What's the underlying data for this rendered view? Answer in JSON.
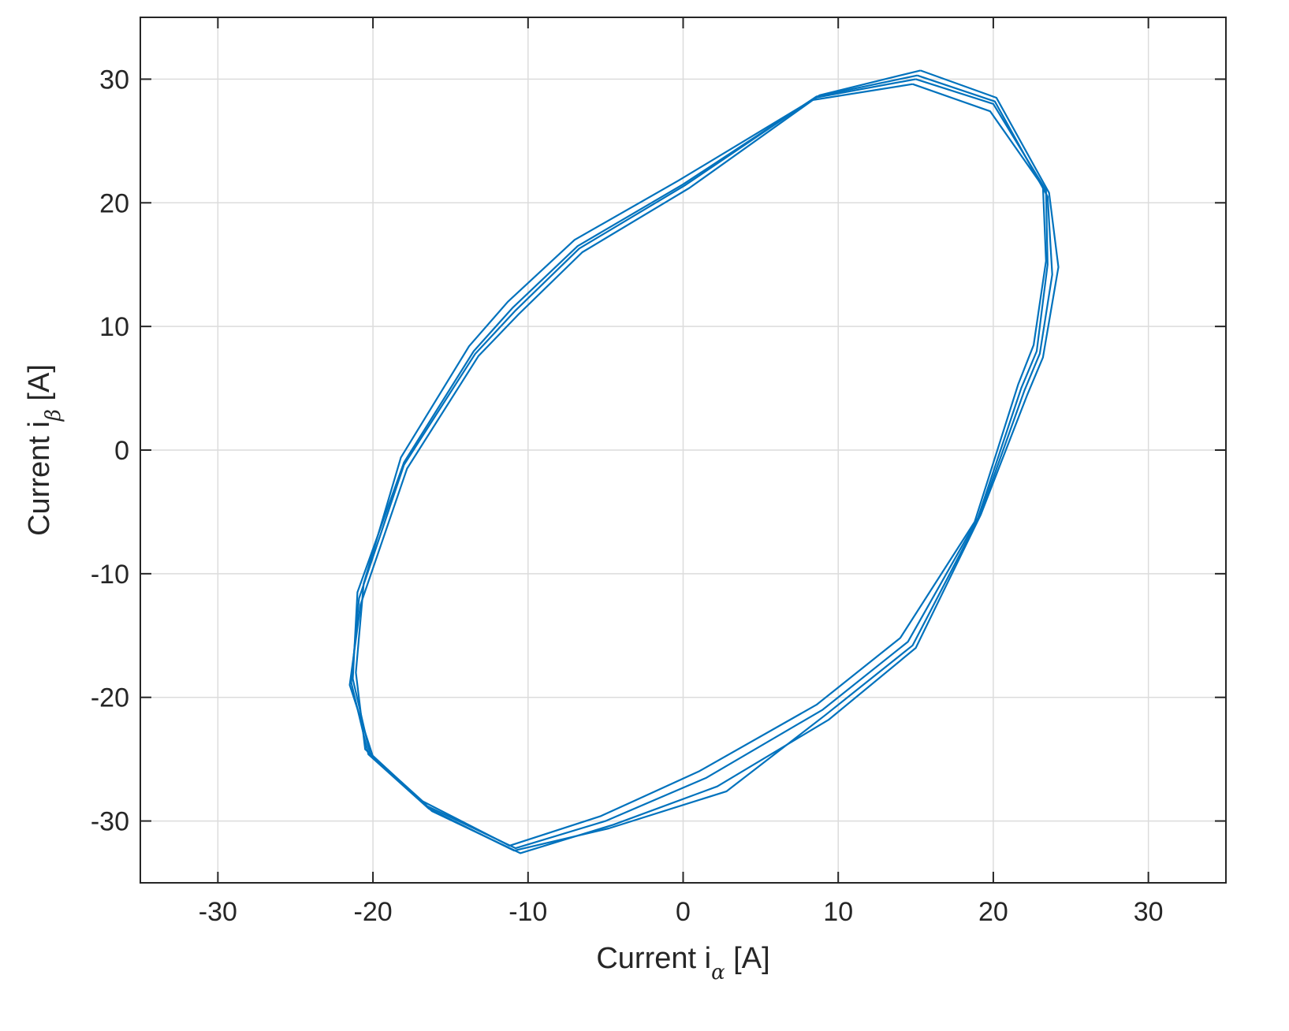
{
  "chart_data": {
    "type": "line",
    "title": "",
    "xlabel": {
      "prefix": "Current i",
      "sub": "α",
      "suffix": " [A]"
    },
    "ylabel": {
      "prefix": "Current i",
      "sub": "β",
      "suffix": " [A]"
    },
    "xlim": [
      -35,
      35
    ],
    "ylim": [
      -35,
      35
    ],
    "xticks": [
      -30,
      -20,
      -10,
      0,
      10,
      20,
      30
    ],
    "yticks": [
      -30,
      -20,
      -10,
      0,
      10,
      20,
      30
    ],
    "grid": true,
    "color": "#0072BD",
    "series": [
      {
        "x": [
          15.0,
          20.0,
          23.4,
          23.5,
          22.8,
          21.8,
          19.0,
          14.5,
          9.0,
          1.5,
          -5.0,
          -10.8,
          -16.5,
          -20.2,
          -21.3,
          -21.0,
          -18.0,
          -13.5,
          -11.0,
          -6.8,
          0.0,
          8.5,
          15.0
        ],
        "y": [
          30.0,
          28.0,
          21.0,
          15.0,
          8.0,
          5.0,
          -5.5,
          -15.5,
          -21.0,
          -26.5,
          -30.0,
          -32.2,
          -28.8,
          -24.5,
          -18.5,
          -11.5,
          -1.0,
          8.0,
          11.5,
          16.5,
          21.5,
          28.5,
          30.0
        ]
      },
      {
        "x": [
          15.3,
          20.2,
          23.6,
          24.2,
          23.2,
          22.2,
          19.2,
          15.0,
          9.4,
          2.2,
          -4.5,
          -10.5,
          -16.2,
          -20.0,
          -21.5,
          -20.8,
          -17.8,
          -13.2,
          -10.6,
          -6.5,
          0.4,
          8.8,
          15.3
        ],
        "y": [
          30.7,
          28.5,
          20.8,
          14.8,
          7.5,
          4.5,
          -5.2,
          -16.0,
          -21.8,
          -27.2,
          -30.3,
          -32.6,
          -29.2,
          -24.8,
          -19.0,
          -12.5,
          -1.5,
          7.6,
          11.0,
          16.0,
          21.2,
          28.7,
          30.7
        ]
      },
      {
        "x": [
          14.8,
          19.8,
          23.2,
          23.4,
          22.6,
          21.6,
          18.8,
          14.0,
          8.6,
          1.0,
          -5.3,
          -11.2,
          -16.8,
          -20.5,
          -21.1,
          -20.6,
          -18.2,
          -13.8,
          -11.3,
          -7.0,
          -0.3,
          8.3,
          14.8
        ],
        "y": [
          29.6,
          27.4,
          21.3,
          15.3,
          8.5,
          5.3,
          -5.8,
          -15.2,
          -20.6,
          -26.0,
          -29.6,
          -32.0,
          -28.4,
          -24.2,
          -18.0,
          -10.8,
          -0.6,
          8.4,
          12.0,
          17.0,
          21.8,
          28.3,
          29.6
        ]
      },
      {
        "x": [
          15.1,
          20.1,
          23.5,
          23.8,
          23.0,
          22.0,
          19.1,
          14.8,
          9.2,
          2.8,
          -4.8,
          -10.9,
          -16.4,
          -20.3,
          -21.4,
          -20.9,
          -18.0,
          -13.4,
          -10.8,
          -6.7,
          0.1,
          8.6,
          15.1
        ],
        "y": [
          30.3,
          28.2,
          20.5,
          14.2,
          7.8,
          4.8,
          -5.4,
          -15.8,
          -21.4,
          -27.6,
          -30.6,
          -32.4,
          -29.0,
          -24.6,
          -18.8,
          -12.0,
          -1.2,
          7.8,
          11.3,
          16.3,
          21.4,
          28.6,
          30.3
        ]
      }
    ]
  }
}
